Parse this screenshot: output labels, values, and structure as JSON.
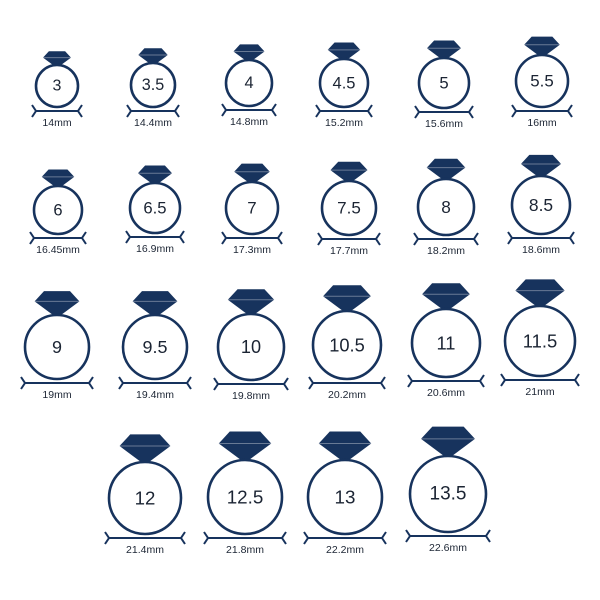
{
  "colors": {
    "navy": "#17335d",
    "text": "#1b2433",
    "background": "#ffffff"
  },
  "icons": {
    "gem": "diamond-gem-icon",
    "ruler": "measurement-ruler-icon"
  },
  "rings": [
    {
      "size": "3",
      "mm": "14mm"
    },
    {
      "size": "3.5",
      "mm": "14.4mm"
    },
    {
      "size": "4",
      "mm": "14.8mm"
    },
    {
      "size": "4.5",
      "mm": "15.2mm"
    },
    {
      "size": "5",
      "mm": "15.6mm"
    },
    {
      "size": "5.5",
      "mm": "16mm"
    },
    {
      "size": "6",
      "mm": "16.45mm"
    },
    {
      "size": "6.5",
      "mm": "16.9mm"
    },
    {
      "size": "7",
      "mm": "17.3mm"
    },
    {
      "size": "7.5",
      "mm": "17.7mm"
    },
    {
      "size": "8",
      "mm": "18.2mm"
    },
    {
      "size": "8.5",
      "mm": "18.6mm"
    },
    {
      "size": "9",
      "mm": "19mm"
    },
    {
      "size": "9.5",
      "mm": "19.4mm"
    },
    {
      "size": "10",
      "mm": "19.8mm"
    },
    {
      "size": "10.5",
      "mm": "20.2mm"
    },
    {
      "size": "11",
      "mm": "20.6mm"
    },
    {
      "size": "11.5",
      "mm": "21mm"
    },
    {
      "size": "12",
      "mm": "21.4mm"
    },
    {
      "size": "12.5",
      "mm": "21.8mm"
    },
    {
      "size": "13",
      "mm": "22.2mm"
    },
    {
      "size": "13.5",
      "mm": "22.6mm"
    }
  ]
}
